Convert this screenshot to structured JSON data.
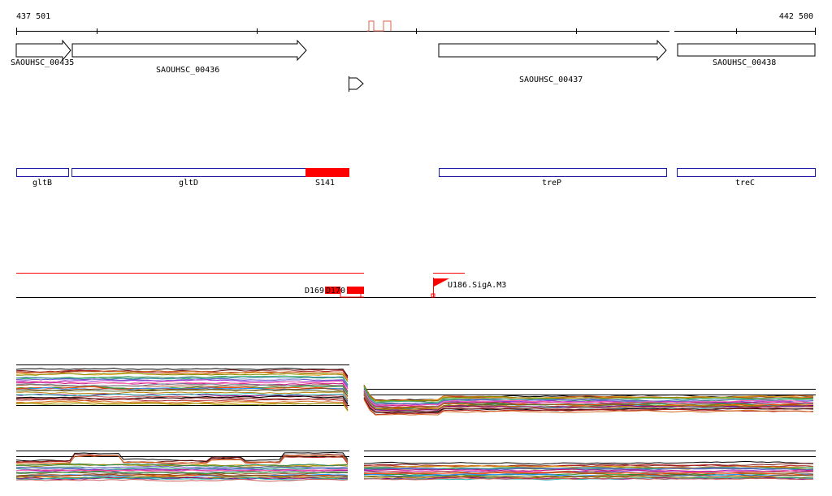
{
  "ruler": {
    "start_label": "437 501",
    "end_label": "442 500"
  },
  "gene_labels": [
    "SAOUHSC_00435",
    "SAOUHSC_00436",
    "SAOUHSC_00437",
    "SAOUHSC_00438"
  ],
  "feature_labels": [
    "gltB",
    "gltD",
    "S141",
    "treP",
    "treC"
  ],
  "annotation_labels": [
    "D169",
    "D170",
    "U186.SigA.M3"
  ],
  "colors": {
    "axis": "#000000",
    "feature_outline": "#1c1ca8",
    "highlight": "#ff0000",
    "peak": "#d9604a"
  },
  "icons": {
    "promoter": "promoter-arrow-icon"
  }
}
